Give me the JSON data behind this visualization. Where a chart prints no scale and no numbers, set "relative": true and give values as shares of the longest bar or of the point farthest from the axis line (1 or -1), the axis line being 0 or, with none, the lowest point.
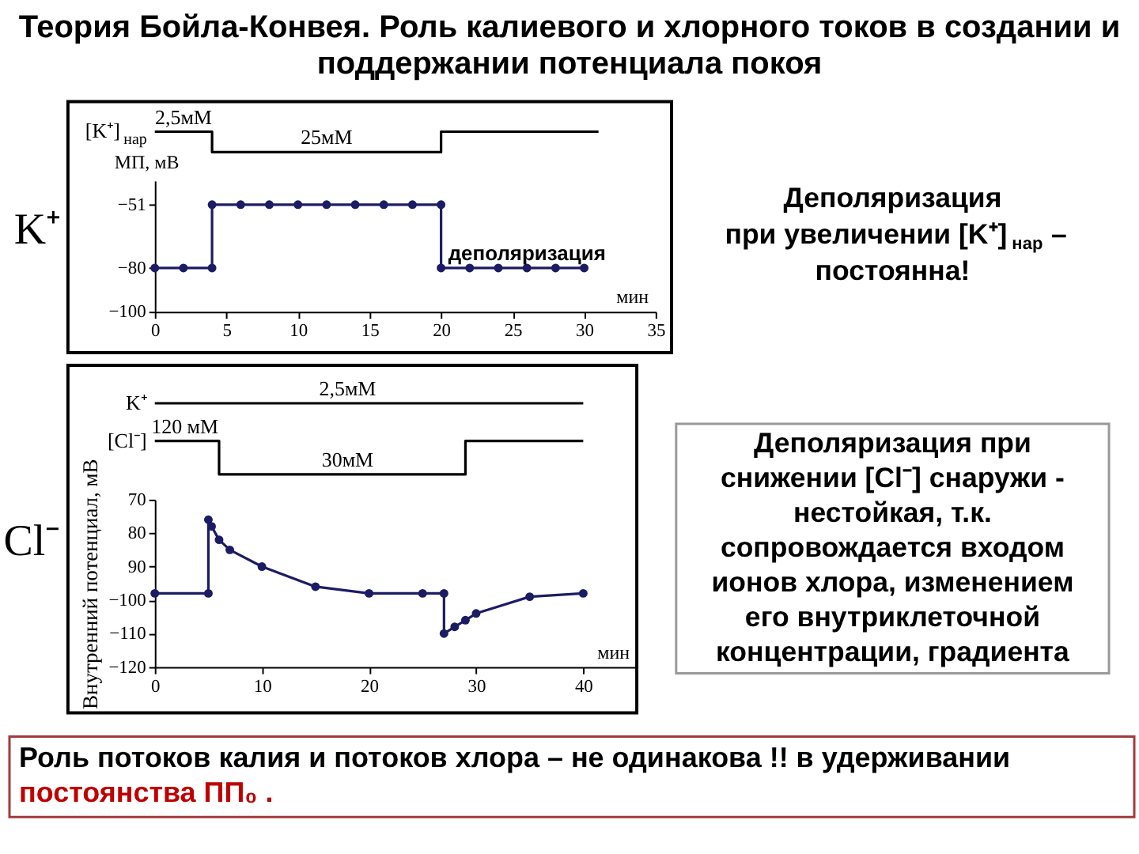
{
  "chart_data": [
    {
      "type": "step",
      "title": "Теория Бойла-Конвея. Роль калиевого и хлорного токов в создании и\nподдержании потенциала покоя",
      "relative": true,
      "xlim": [
        0,
        35
      ],
      "tick_labels": false,
      "series": [
        {
          "name": "[K⁺] $_{нар}$",
          "color": "#000000",
          "x": [
            0,
            4,
            20,
            31
          ],
          "values": [
            1,
            0,
            1,
            1
          ]
        }
      ],
      "annotations": [
        {
          "text": "2,5мМ",
          "x": 2,
          "y": 1
        },
        {
          "text": "25мМ",
          "x": 12,
          "y": 0
        }
      ]
    },
    {
      "type": "line",
      "xlabel": "мин",
      "ylabel": "МП, мВ",
      "x": [
        0,
        2,
        4,
        4,
        6,
        8,
        10,
        12,
        14,
        16,
        18,
        20,
        20,
        22,
        24,
        26,
        28,
        30
      ],
      "series": [
        {
          "color": "#1c1c64",
          "values": [
            -80,
            -80,
            -80,
            -51,
            -51,
            -51,
            -51,
            -51,
            -51,
            -51,
            -51,
            -51,
            -80,
            -80,
            -80,
            -80,
            -80,
            -80
          ]
        }
      ],
      "xlim": [
        0,
        35
      ],
      "xticks": [
        0,
        5,
        10,
        15,
        20,
        25,
        30,
        35
      ],
      "ylim": [
        -100,
        -40
      ],
      "yticks": [
        -100,
        -80,
        -51
      ],
      "marker": "circle",
      "annotations": [
        "K⁺",
        {
          "text": "деполяризация",
          "x": 26,
          "y": -80
        }
      ]
    },
    {
      "type": "step",
      "relative": true,
      "xlim": [
        0,
        45
      ],
      "tick_labels": false,
      "series": [
        {
          "name": "K⁺",
          "color": "#000000",
          "x": [
            0,
            40
          ],
          "values": [
            1,
            1
          ]
        },
        {
          "name": "[Cl⁻]",
          "color": "#000000",
          "x": [
            0,
            6,
            29,
            40
          ],
          "values": [
            0.47,
            0,
            0.47,
            0.47
          ]
        }
      ],
      "annotations": [
        {
          "text": "2,5мМ",
          "x": 18,
          "y": 1
        },
        {
          "text": "120 мМ",
          "x": 2.8,
          "y": 0.47
        },
        {
          "text": "30мМ",
          "x": 18,
          "y": 0
        }
      ]
    },
    {
      "type": "line",
      "xlabel": "мин",
      "ylabel": "Внутренний потенциал, мВ",
      "x": [
        0,
        5,
        5,
        5.3,
        6,
        7,
        10,
        15,
        20,
        25,
        27,
        27,
        28,
        29,
        30,
        35,
        40
      ],
      "series": [
        {
          "color": "#1c1c64",
          "values": [
            -98,
            -98,
            -76,
            -78,
            -82,
            -85,
            -90,
            -96,
            -98,
            -98,
            -98,
            -110,
            -108,
            -106,
            -104,
            -99,
            -98
          ]
        }
      ],
      "xlim": [
        0,
        45
      ],
      "xticks": [
        0,
        10,
        20,
        30,
        40
      ],
      "ylim": [
        -120,
        -70
      ],
      "yticks": [
        {
          "value": -70,
          "label": "70"
        },
        {
          "value": -80,
          "label": "80"
        },
        {
          "value": -90,
          "label": "90"
        },
        -100,
        -110,
        -120
      ],
      "marker": "circle",
      "annotations": [
        "Cl⁻"
      ]
    },
    {
      "type": "other",
      "annotations": [
        "Деполяризация",
        "при увеличении [K⁺] $_{нар}$ –",
        "постоянна!"
      ]
    },
    {
      "type": "other",
      "annotations": [
        "Деполяризация при",
        "снижении [Cl⁻] снаружи -",
        "нестойкая, т.к.",
        "сопровождается входом",
        "ионов хлора, изменением",
        "его внутриклеточной",
        "концентрации, градиента"
      ]
    },
    {
      "type": "other",
      "annotations": [
        "Роль потоков калия и потоков хлора – не одинакова !! в удерживании",
        "постоянства ПП₀ ."
      ]
    }
  ]
}
